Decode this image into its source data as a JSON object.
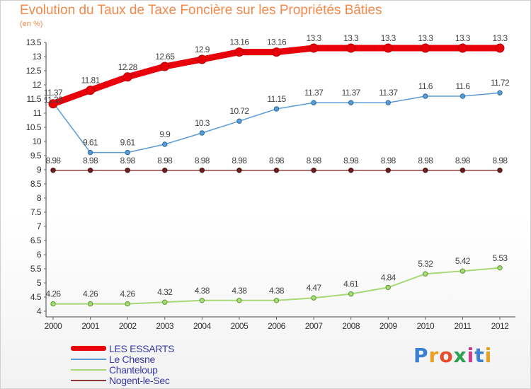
{
  "title": "Evolution du Taux de Taxe Foncière sur les Propriétés Bâties",
  "subtitle": "(en %)",
  "brand": "Proxiti",
  "chart_data": {
    "type": "line",
    "x": [
      "2000",
      "2001",
      "2002",
      "2003",
      "2004",
      "2005",
      "2006",
      "2007",
      "2008",
      "2009",
      "2010",
      "2011",
      "2012"
    ],
    "ylim": [
      4,
      13.5
    ],
    "yticks": [
      "4",
      "4.5",
      "5",
      "5.5",
      "6",
      "6.5",
      "7",
      "7.5",
      "8",
      "8.5",
      "9",
      "9.5",
      "10",
      "10.5",
      "11",
      "11.5",
      "12",
      "12.5",
      "13",
      "13.5"
    ],
    "series": [
      {
        "name": "LES ESSARTS",
        "color": "#e8000b",
        "values": [
          11.33,
          11.81,
          12.28,
          12.65,
          12.9,
          13.16,
          13.16,
          13.3,
          13.3,
          13.3,
          13.3,
          13.3,
          13.3
        ],
        "labels": [
          "11.33",
          "11.81",
          "12.28",
          "12.65",
          "12.9",
          "13.16",
          "13.16",
          "13.3",
          "13.3",
          "13.3",
          "13.3",
          "13.3",
          "13.3"
        ]
      },
      {
        "name": "Le Chesne",
        "color": "#5b9bd5",
        "values": [
          11.37,
          9.61,
          9.61,
          9.9,
          10.3,
          10.72,
          11.15,
          11.37,
          11.37,
          11.37,
          11.6,
          11.6,
          11.72
        ],
        "labels": [
          "11.37",
          "9.61",
          "9.61",
          "9.9",
          "10.3",
          "10.72",
          "11.15",
          "11.37",
          "11.37",
          "11.37",
          "11.6",
          "11.6",
          "11.72"
        ]
      },
      {
        "name": "Chanteloup",
        "color": "#a8d878",
        "values": [
          4.26,
          4.26,
          4.26,
          4.32,
          4.38,
          4.38,
          4.38,
          4.47,
          4.61,
          4.84,
          5.32,
          5.42,
          5.53
        ],
        "labels": [
          "4.26",
          "4.26",
          "4.26",
          "4.32",
          "4.38",
          "4.38",
          "4.38",
          "4.47",
          "4.61",
          "4.84",
          "5.32",
          "5.42",
          "5.53"
        ]
      },
      {
        "name": "Nogent-le-Sec",
        "color": "#8b3a3a",
        "values": [
          8.98,
          8.98,
          8.98,
          8.98,
          8.98,
          8.98,
          8.98,
          8.98,
          8.98,
          8.98,
          8.98,
          8.98,
          8.98
        ],
        "labels": [
          "8.98",
          "8.98",
          "8.98",
          "8.98",
          "8.98",
          "8.98",
          "8.98",
          "8.98",
          "8.98",
          "8.98",
          "8.98",
          "8.98",
          "8.98"
        ]
      }
    ]
  }
}
